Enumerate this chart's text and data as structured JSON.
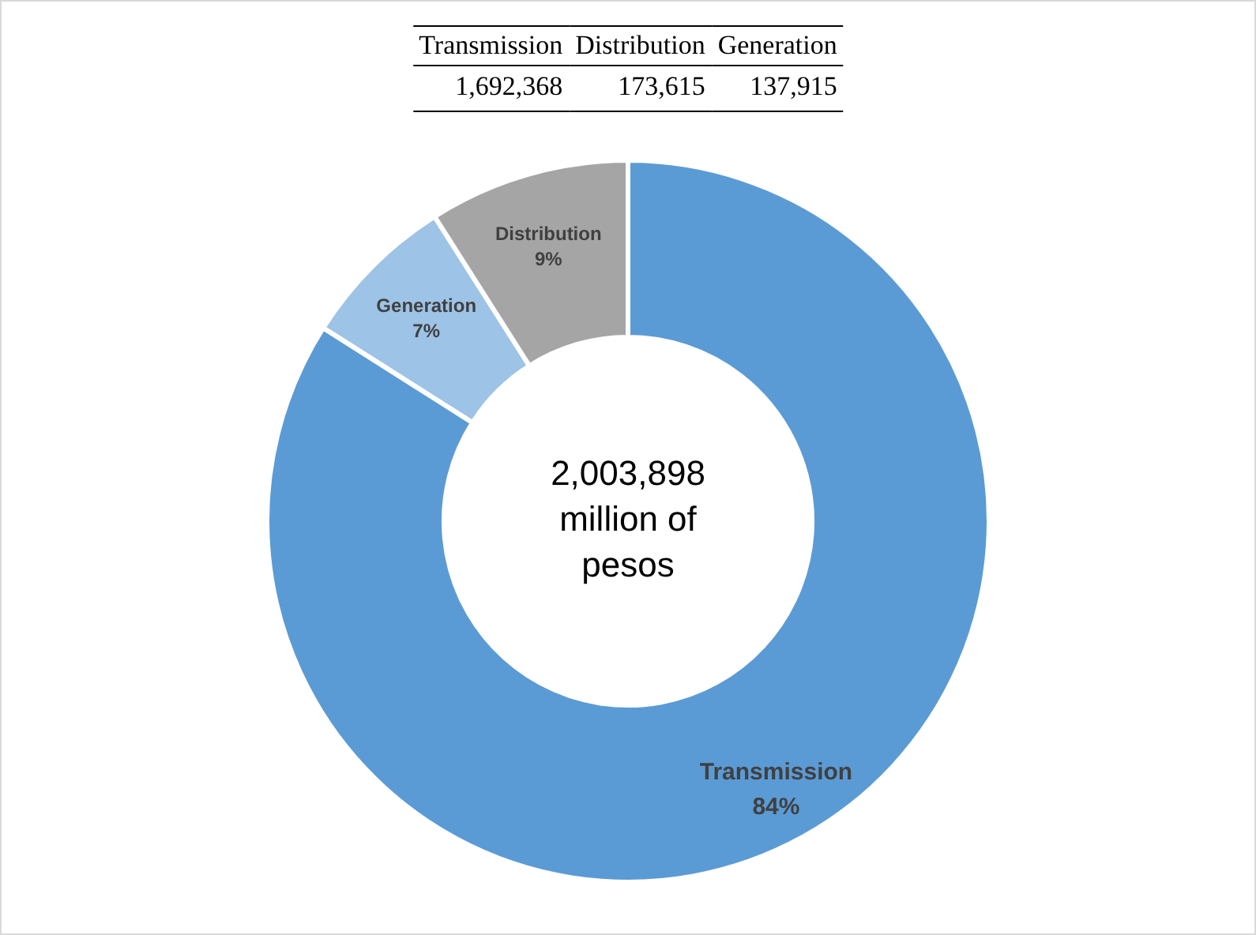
{
  "chart_data": {
    "type": "donut",
    "categories": [
      "Transmission",
      "Generation",
      "Distribution"
    ],
    "values": [
      84,
      7,
      9
    ],
    "colors": [
      "#5b9bd5",
      "#9dc3e6",
      "#a5a5a5"
    ],
    "value_labels": [
      "84%",
      "7%",
      "9%"
    ],
    "data_labels": true,
    "annotations": [
      "2,003,898 million of pesos",
      "Transmission",
      "Distribution",
      "Generation",
      "1,692,368",
      "173,615",
      "137,915"
    ],
    "legend": false
  }
}
